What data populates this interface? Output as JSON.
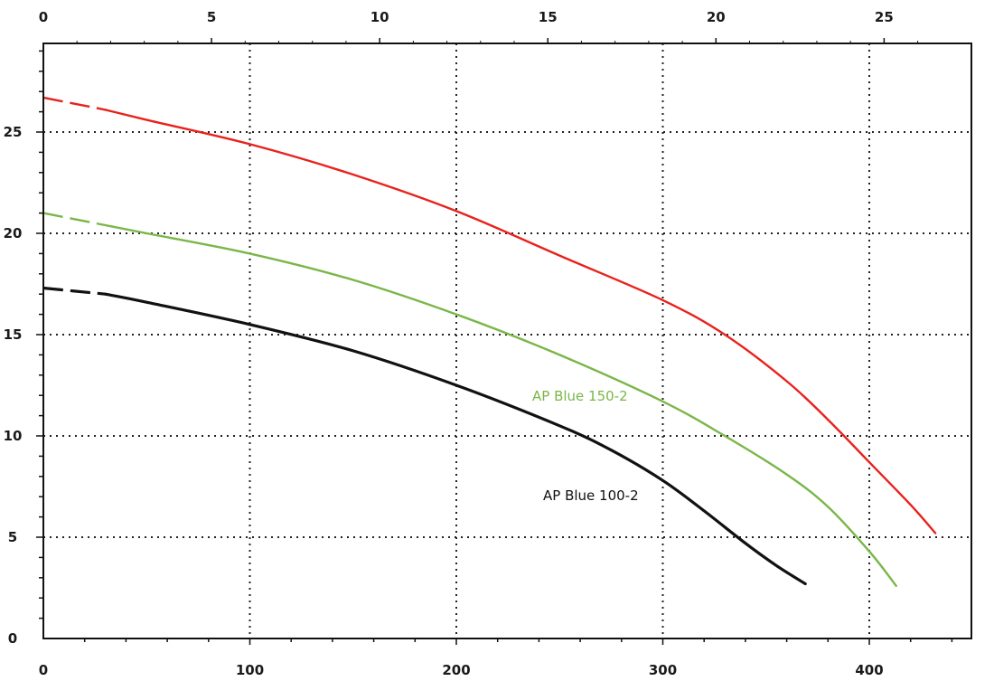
{
  "chart_data": {
    "type": "line",
    "title": "",
    "xlabel": "",
    "ylabel": "",
    "xlim": [
      0,
      450
    ],
    "ylim": [
      0,
      30
    ],
    "x_ticks": [
      0,
      100,
      200,
      300,
      400
    ],
    "y_ticks": [
      0,
      5,
      10,
      15,
      20,
      25
    ],
    "secondary_x": {
      "position": "top",
      "ticks": [
        0,
        5,
        10,
        15,
        20,
        25
      ],
      "per_primary_unit": 0.0614
    },
    "grid": true,
    "colors": {
      "frame": "#111111",
      "grid": "#222222",
      "AP Blue 100-2": "#111111",
      "AP Blue 150-2": "#7ab648",
      "top": "#e8221c"
    },
    "series": [
      {
        "name": "",
        "label": "",
        "color": "#e8221c",
        "dashed_until_x": 30,
        "points": [
          [
            0,
            26.7
          ],
          [
            30,
            26.1
          ],
          [
            50,
            25.6
          ],
          [
            100,
            24.4
          ],
          [
            150,
            22.9
          ],
          [
            200,
            21.1
          ],
          [
            250,
            18.9
          ],
          [
            300,
            16.7
          ],
          [
            330,
            15.0
          ],
          [
            360,
            12.7
          ],
          [
            380,
            10.8
          ],
          [
            400,
            8.7
          ],
          [
            420,
            6.6
          ],
          [
            432,
            5.2
          ]
        ]
      },
      {
        "name": "AP Blue 150-2",
        "label": "AP Blue 150-2",
        "color": "#7ab648",
        "dashed_until_x": 30,
        "points": [
          [
            0,
            21.0
          ],
          [
            30,
            20.4
          ],
          [
            50,
            20.0
          ],
          [
            100,
            19.0
          ],
          [
            150,
            17.7
          ],
          [
            200,
            16.0
          ],
          [
            250,
            14.0
          ],
          [
            300,
            11.7
          ],
          [
            330,
            10.0
          ],
          [
            360,
            8.1
          ],
          [
            380,
            6.5
          ],
          [
            400,
            4.3
          ],
          [
            413,
            2.6
          ]
        ]
      },
      {
        "name": "AP Blue 100-2",
        "label": "AP Blue 100-2",
        "color": "#111111",
        "dashed_until_x": 30,
        "points": [
          [
            0,
            17.3
          ],
          [
            30,
            17.0
          ],
          [
            50,
            16.6
          ],
          [
            100,
            15.5
          ],
          [
            150,
            14.2
          ],
          [
            200,
            12.5
          ],
          [
            250,
            10.5
          ],
          [
            275,
            9.3
          ],
          [
            300,
            7.8
          ],
          [
            320,
            6.3
          ],
          [
            340,
            4.7
          ],
          [
            355,
            3.6
          ],
          [
            369,
            2.7
          ]
        ]
      }
    ]
  }
}
